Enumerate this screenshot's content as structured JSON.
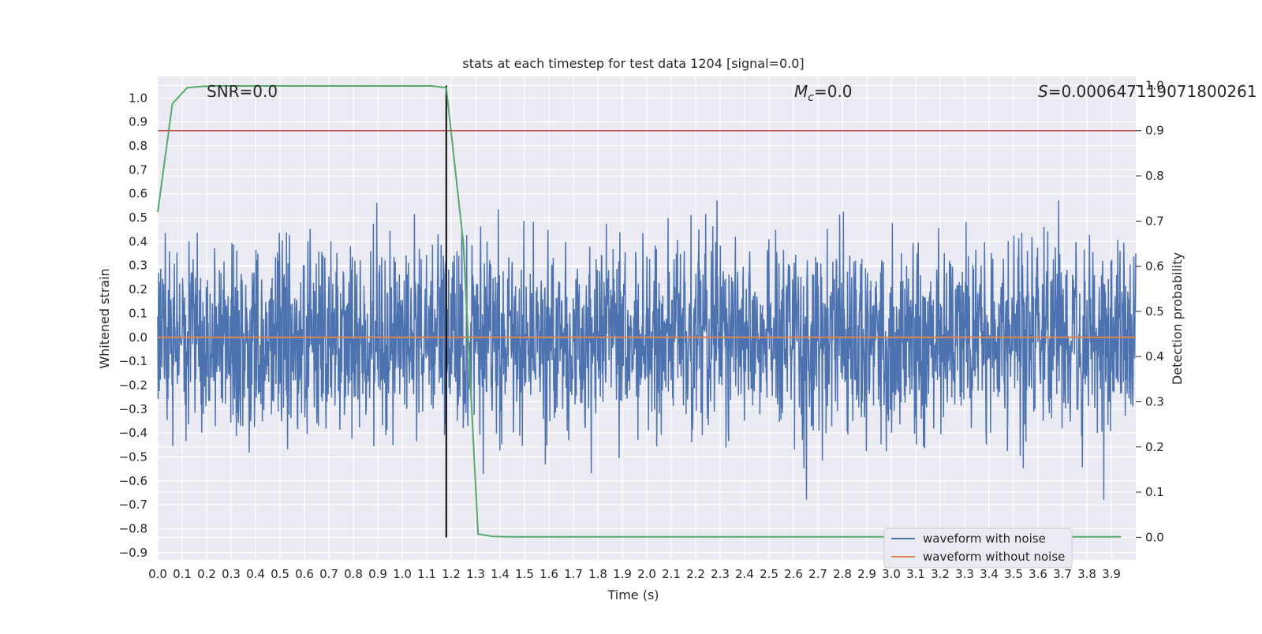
{
  "chart_data": {
    "type": "line",
    "title": "stats at each timestep for test data 1204 [signal=0.0]",
    "xlabel": "Time (s)",
    "ylabel": "Whitened strain",
    "ylabel_right": "Detection probability",
    "xlim": [
      0.0,
      4.0
    ],
    "ylim": [
      -0.93,
      1.09
    ],
    "ylim_right": [
      -0.05,
      1.02
    ],
    "x_ticks": [
      "0.0",
      "0.1",
      "0.2",
      "0.3",
      "0.4",
      "0.5",
      "0.6",
      "0.7",
      "0.8",
      "0.9",
      "1.0",
      "1.1",
      "1.2",
      "1.3",
      "1.4",
      "1.5",
      "1.6",
      "1.7",
      "1.8",
      "1.9",
      "2.0",
      "2.1",
      "2.2",
      "2.3",
      "2.4",
      "2.5",
      "2.6",
      "2.7",
      "2.8",
      "2.9",
      "3.0",
      "3.1",
      "3.2",
      "3.3",
      "3.4",
      "3.5",
      "3.6",
      "3.7",
      "3.8",
      "3.9"
    ],
    "y_ticks": [
      "1.0",
      "0.9",
      "0.8",
      "0.7",
      "0.6",
      "0.5",
      "0.4",
      "0.3",
      "0.2",
      "0.1",
      "0.0",
      "−0.1",
      "−0.2",
      "−0.3",
      "−0.4",
      "−0.5",
      "−0.6",
      "−0.7",
      "−0.8",
      "−0.9"
    ],
    "y_ticks_right": [
      "1.0",
      "0.9",
      "0.8",
      "0.7",
      "0.6",
      "0.5",
      "0.4",
      "0.3",
      "0.2",
      "0.1",
      "0.0"
    ],
    "annotations": {
      "snr": "SNR=0.0",
      "mc_symbol": "M",
      "mc_sub": "c",
      "mc_value": "=0.0",
      "s_symbol": "S",
      "s_value": "=0.000647119071800261"
    },
    "threshold_right": 0.9,
    "marker_time": 1.18,
    "series": [
      {
        "name": "waveform with noise",
        "color": "#4c72b0",
        "noise_sigma": 0.2,
        "t_start": 0.0,
        "t_end": 4.0
      },
      {
        "name": "waveform without noise",
        "color": "#dd8452",
        "values_constant": 0.0
      },
      {
        "color": "#55a868",
        "axis": "right",
        "x": [
          0.0,
          0.06,
          0.12,
          0.18,
          0.24,
          1.0,
          1.12,
          1.18,
          1.25,
          1.31,
          1.37,
          1.45,
          2.0,
          3.0,
          3.94
        ],
        "values": [
          0.72,
          0.96,
          0.995,
          0.998,
          0.999,
          0.999,
          0.999,
          0.995,
          0.65,
          0.007,
          0.002,
          0.001,
          0.001,
          0.001,
          0.001
        ]
      }
    ],
    "colors": {
      "plot_bg": "#eaeaf2",
      "grid": "#ffffff",
      "threshold": "#c44e52",
      "marker": "#000000"
    },
    "legend_placement": "lower-right"
  }
}
